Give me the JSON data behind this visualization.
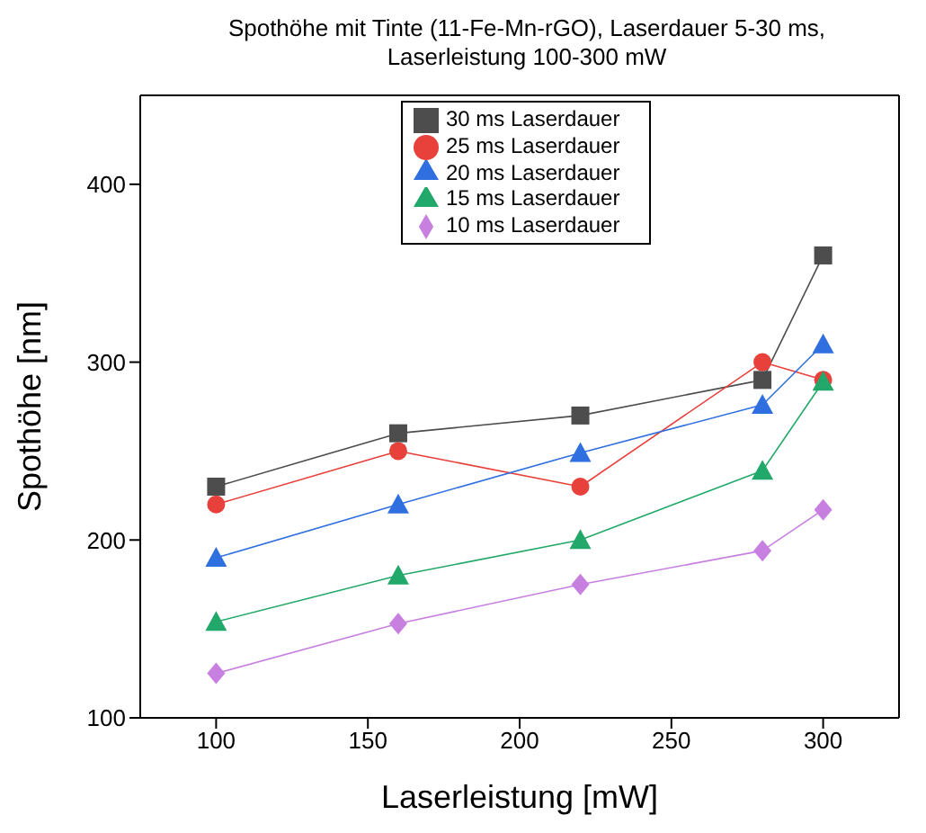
{
  "chart_data": {
    "type": "line",
    "title": "Spothöhe mit Tinte (11-Fe-Mn-rGO), Laserdauer 5-30 ms, Laserleistung 100-300 mW",
    "xlabel": "Laserleistung [mW]",
    "ylabel": "Spothöhe [nm]",
    "x": [
      100,
      160,
      220,
      280,
      300
    ],
    "series": [
      {
        "name": "30 ms Laserdauer",
        "color": "#4d4d4d",
        "marker": "square",
        "values": [
          230,
          260,
          270,
          290,
          360
        ]
      },
      {
        "name": "25 ms Laserdauer",
        "color": "#e8403a",
        "marker": "circle",
        "values": [
          220,
          250,
          230,
          300,
          290
        ]
      },
      {
        "name": "20 ms Laserdauer",
        "color": "#2f6fdf",
        "marker": "triangle",
        "values": [
          190,
          220,
          249,
          276,
          310
        ]
      },
      {
        "name": "15 ms Laserdauer",
        "color": "#22a86a",
        "marker": "triangle",
        "values": [
          154,
          180,
          200,
          239,
          289
        ]
      },
      {
        "name": "10 ms Laserdauer",
        "color": "#c77fe0",
        "marker": "diamond",
        "values": [
          125,
          153,
          175,
          194,
          217
        ]
      }
    ],
    "xlim": [
      75,
      325
    ],
    "xticks": [
      100,
      150,
      200,
      250,
      300
    ],
    "ylim": [
      100,
      450
    ],
    "yticks": [
      100,
      200,
      300,
      400
    ],
    "grid": false,
    "legend": "top"
  }
}
